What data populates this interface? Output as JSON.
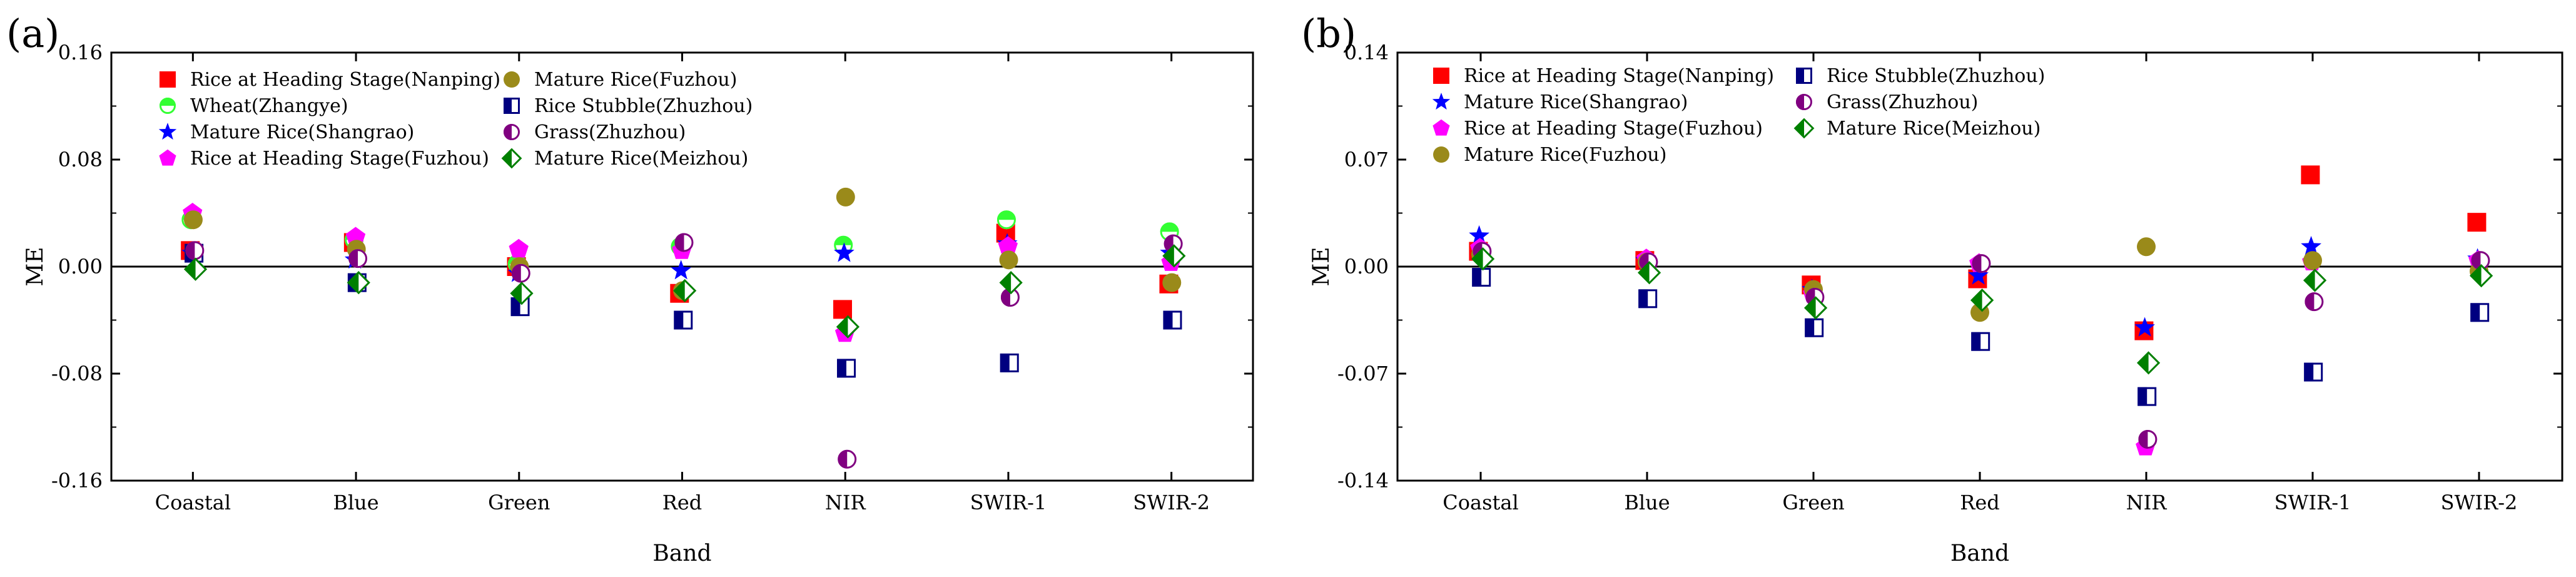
{
  "chart_data": [
    {
      "type": "scatter",
      "panel_label": "(a)",
      "xlabel": "Band",
      "ylabel": "ME",
      "categories": [
        "Coastal",
        "Blue",
        "Green",
        "Red",
        "NIR",
        "SWIR-1",
        "SWIR-2"
      ],
      "ylim": [
        -0.16,
        0.16
      ],
      "yticks": [
        {
          "value": -0.16,
          "label": "-0.16"
        },
        {
          "value": -0.08,
          "label": "-0.08"
        },
        {
          "value": 0.0,
          "label": "0.00"
        },
        {
          "value": 0.08,
          "label": "0.08"
        },
        {
          "value": 0.16,
          "label": "0.16"
        }
      ],
      "zero_line": true,
      "legend_position": "top-left",
      "legend_columns": 2,
      "series": [
        {
          "name": "Rice at Heading Stage(Nanping)",
          "marker": "square",
          "color": "#ff0000",
          "values": [
            0.012,
            0.018,
            0.0,
            -0.02,
            -0.032,
            0.025,
            -0.013
          ]
        },
        {
          "name": "Wheat(Zhangye)",
          "marker": "circle-half-top",
          "color": "#33ff33",
          "values": [
            0.035,
            0.02,
            0.002,
            0.015,
            0.016,
            0.035,
            0.026
          ]
        },
        {
          "name": "Mature Rice(Shangrao)",
          "marker": "star",
          "color": "#0000ff",
          "values": [
            0.01,
            0.005,
            -0.005,
            -0.003,
            0.01,
            0.017,
            0.01
          ]
        },
        {
          "name": "Rice at Heading Stage(Fuzhou)",
          "marker": "pentagon",
          "color": "#ff00ff",
          "values": [
            0.04,
            0.022,
            0.013,
            0.012,
            -0.05,
            0.015,
            0.003
          ]
        },
        {
          "name": "Mature Rice(Fuzhou)",
          "marker": "circle",
          "color": "#9a8a1a",
          "values": [
            0.035,
            0.013,
            0.0,
            -0.018,
            0.052,
            0.005,
            -0.012
          ]
        },
        {
          "name": "Rice Stubble(Zhuzhou)",
          "marker": "square-half-left",
          "color": "#000080",
          "values": [
            0.01,
            -0.012,
            -0.03,
            -0.04,
            -0.076,
            -0.072,
            -0.04
          ]
        },
        {
          "name": "Grass(Zhuzhou)",
          "marker": "circle-half-left",
          "color": "#800080",
          "values": [
            0.012,
            0.006,
            -0.005,
            0.018,
            -0.144,
            -0.023,
            0.017
          ]
        },
        {
          "name": "Mature Rice(Meizhou)",
          "marker": "diamond-half-left",
          "color": "#008000",
          "values": [
            -0.002,
            -0.012,
            -0.02,
            -0.018,
            -0.045,
            -0.012,
            0.008
          ]
        }
      ]
    },
    {
      "type": "scatter",
      "panel_label": "(b)",
      "xlabel": "Band",
      "ylabel": "ME",
      "categories": [
        "Coastal",
        "Blue",
        "Green",
        "Red",
        "NIR",
        "SWIR-1",
        "SWIR-2"
      ],
      "ylim": [
        -0.14,
        0.14
      ],
      "yticks": [
        {
          "value": -0.14,
          "label": "-0.14"
        },
        {
          "value": -0.07,
          "label": "-0.07"
        },
        {
          "value": 0.0,
          "label": "0.00"
        },
        {
          "value": 0.07,
          "label": "0.07"
        },
        {
          "value": 0.14,
          "label": "0.14"
        }
      ],
      "zero_line": true,
      "legend_position": "top-left",
      "legend_columns": 2,
      "series": [
        {
          "name": "Rice at Heading Stage(Nanping)",
          "marker": "square",
          "color": "#ff0000",
          "values": [
            0.01,
            0.004,
            -0.012,
            -0.008,
            -0.042,
            0.06,
            0.029
          ]
        },
        {
          "name": "Mature Rice(Shangrao)",
          "marker": "star",
          "color": "#0000ff",
          "values": [
            0.02,
            0.004,
            -0.015,
            -0.006,
            -0.04,
            0.013,
            0.005
          ]
        },
        {
          "name": "Rice at Heading Stage(Fuzhou)",
          "marker": "pentagon",
          "color": "#ff00ff",
          "values": [
            0.012,
            0.005,
            -0.018,
            0.002,
            -0.118,
            0.003,
            0.004
          ]
        },
        {
          "name": "Mature Rice(Fuzhou)",
          "marker": "circle",
          "color": "#9a8a1a",
          "values": [
            0.008,
            0.003,
            -0.015,
            -0.03,
            0.013,
            0.004,
            -0.003
          ]
        },
        {
          "name": "Rice Stubble(Zhuzhou)",
          "marker": "square-half-left",
          "color": "#000080",
          "values": [
            -0.007,
            -0.021,
            -0.04,
            -0.049,
            -0.085,
            -0.069,
            -0.03
          ]
        },
        {
          "name": "Grass(Zhuzhou)",
          "marker": "circle-half-left",
          "color": "#800080",
          "values": [
            0.01,
            0.003,
            -0.02,
            0.002,
            -0.113,
            -0.023,
            0.004
          ]
        },
        {
          "name": "Mature Rice(Meizhou)",
          "marker": "diamond-half-left",
          "color": "#008000",
          "values": [
            0.005,
            -0.004,
            -0.027,
            -0.022,
            -0.063,
            -0.009,
            -0.006
          ]
        }
      ]
    }
  ]
}
